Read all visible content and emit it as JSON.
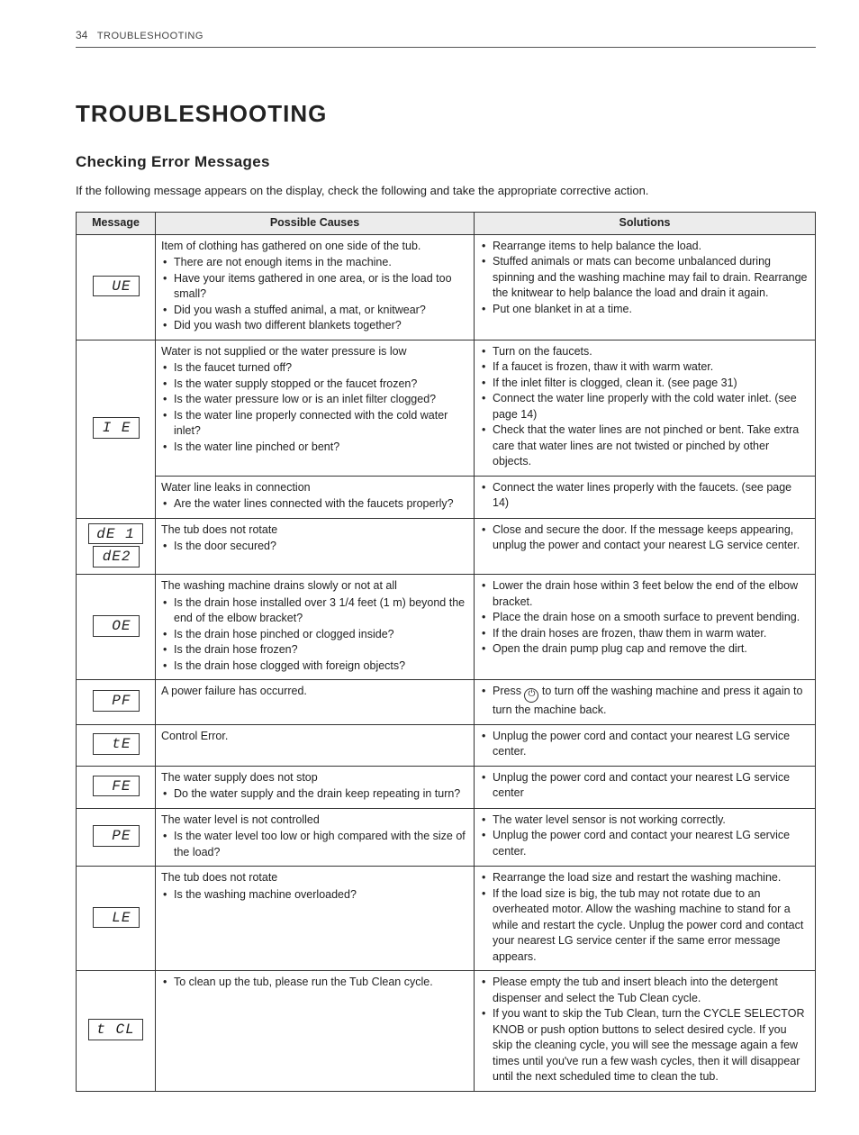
{
  "header": {
    "page_number": "34",
    "section_label": "TROUBLESHOOTING"
  },
  "title": "TROUBLESHOOTING",
  "subtitle": "Checking Error Messages",
  "intro_text": "If the following message appears on the display, check the following and take the appropriate corrective action.",
  "table": {
    "headers": {
      "message": "Message",
      "causes": "Possible Causes",
      "solutions": "Solutions"
    },
    "rows": [
      {
        "codes": [
          "UE"
        ],
        "cause_lead": "Item of clothing has gathered on one side of the tub.",
        "cause_bullets": [
          "There are not enough items in the machine.",
          "Have your items gathered in one area, or is the load too small?",
          "Did you wash a stuffed animal, a mat, or knitwear?",
          "Did you wash two different blankets together?"
        ],
        "sol_bullets": [
          "Rearrange items to help balance the load.",
          "Stuffed animals or mats can become unbalanced during spinning and the washing machine may fail to drain. Rearrange the knitwear to help balance the load and drain it again.",
          "Put one blanket in at a time."
        ]
      },
      {
        "codes": [
          "I E"
        ],
        "rowspan_msg": 2,
        "cause_lead": "Water is not supplied or the water pressure is low",
        "cause_bullets": [
          "Is the faucet turned off?",
          "Is the water supply stopped or the faucet frozen?",
          "Is the water pressure low or is an inlet filter clogged?",
          "Is the water line properly connected with the cold water inlet?",
          "Is the water line pinched or bent?"
        ],
        "sol_bullets": [
          "Turn on the faucets.",
          "If a faucet is frozen, thaw it with warm water.",
          "If the inlet filter is clogged, clean it. (see page 31)",
          "Connect the water line properly with the cold water inlet. (see page 14)",
          "Check that the water lines are not pinched or bent. Take extra care that water lines are not twisted or pinched by other objects."
        ],
        "second": {
          "cause_lead": "Water line leaks in connection",
          "cause_bullets": [
            "Are the water lines connected with the faucets properly?"
          ],
          "sol_bullets": [
            "Connect the water lines properly with the faucets. (see page 14)"
          ]
        }
      },
      {
        "codes": [
          "dE 1",
          "dE2"
        ],
        "cause_lead": "The tub does not rotate",
        "cause_bullets": [
          "Is the door secured?"
        ],
        "sol_bullets": [
          "Close and secure the door. If the message keeps appearing, unplug the power and contact your nearest LG service center."
        ]
      },
      {
        "codes": [
          "OE"
        ],
        "cause_lead": "The washing machine drains slowly or not at all",
        "cause_bullets": [
          "Is the drain hose installed over 3 1/4 feet (1 m) beyond the end of the elbow bracket?",
          "Is the drain hose pinched or clogged inside?",
          "Is the drain hose frozen?",
          "Is the drain hose clogged with foreign objects?"
        ],
        "sol_bullets": [
          "Lower the drain hose within 3 feet below the end of the elbow bracket.",
          "Place the drain hose on a smooth surface to prevent bending.",
          "If the drain hoses are frozen, thaw them in warm water.",
          "Open the drain pump plug cap and remove the dirt."
        ]
      },
      {
        "codes": [
          "PF"
        ],
        "cause_lead": "A power failure has occurred.",
        "cause_bullets": [],
        "sol_html": true,
        "sol_pre": "Press ",
        "sol_post": " to turn off the washing machine and press it again to turn the machine back."
      },
      {
        "codes": [
          "tE"
        ],
        "cause_lead": "Control Error.",
        "cause_bullets": [],
        "sol_bullets": [
          "Unplug the power cord and contact your nearest LG service center."
        ]
      },
      {
        "codes": [
          "FE"
        ],
        "cause_lead": "The water supply does not stop",
        "cause_bullets": [
          "Do the water supply and the drain keep repeating in turn?"
        ],
        "sol_bullets": [
          "Unplug the power cord and contact your nearest LG service center"
        ]
      },
      {
        "codes": [
          "PE"
        ],
        "cause_lead": "The water level is not controlled",
        "cause_bullets": [
          "Is the water level too low or high compared with the size of the load?"
        ],
        "sol_bullets": [
          "The water level sensor is not working correctly.",
          "Unplug the power cord and contact your nearest LG service center."
        ]
      },
      {
        "codes": [
          "LE"
        ],
        "cause_lead": "The tub does not rotate",
        "cause_bullets": [
          "Is the washing machine overloaded?"
        ],
        "sol_bullets": [
          "Rearrange the load size and restart the washing machine.",
          "If the load size is big, the tub may not rotate due to an overheated motor. Allow the washing machine to stand for a while and restart the cycle. Unplug the power cord and contact your nearest LG service center if the same error message appears."
        ]
      },
      {
        "codes": [
          "t CL"
        ],
        "cause_lead": "",
        "cause_bullets": [
          "To clean up the tub, please run the Tub Clean cycle."
        ],
        "sol_bullets": [
          "Please empty the tub and insert bleach into the detergent dispenser and select the Tub Clean cycle.",
          "If you want to skip the Tub Clean, turn the CYCLE SELECTOR KNOB or push option buttons to select desired cycle. If you skip the cleaning cycle, you will see the message again a few times until you've run a few wash cycles, then it will disappear until the next scheduled time to clean the tub."
        ]
      }
    ]
  }
}
